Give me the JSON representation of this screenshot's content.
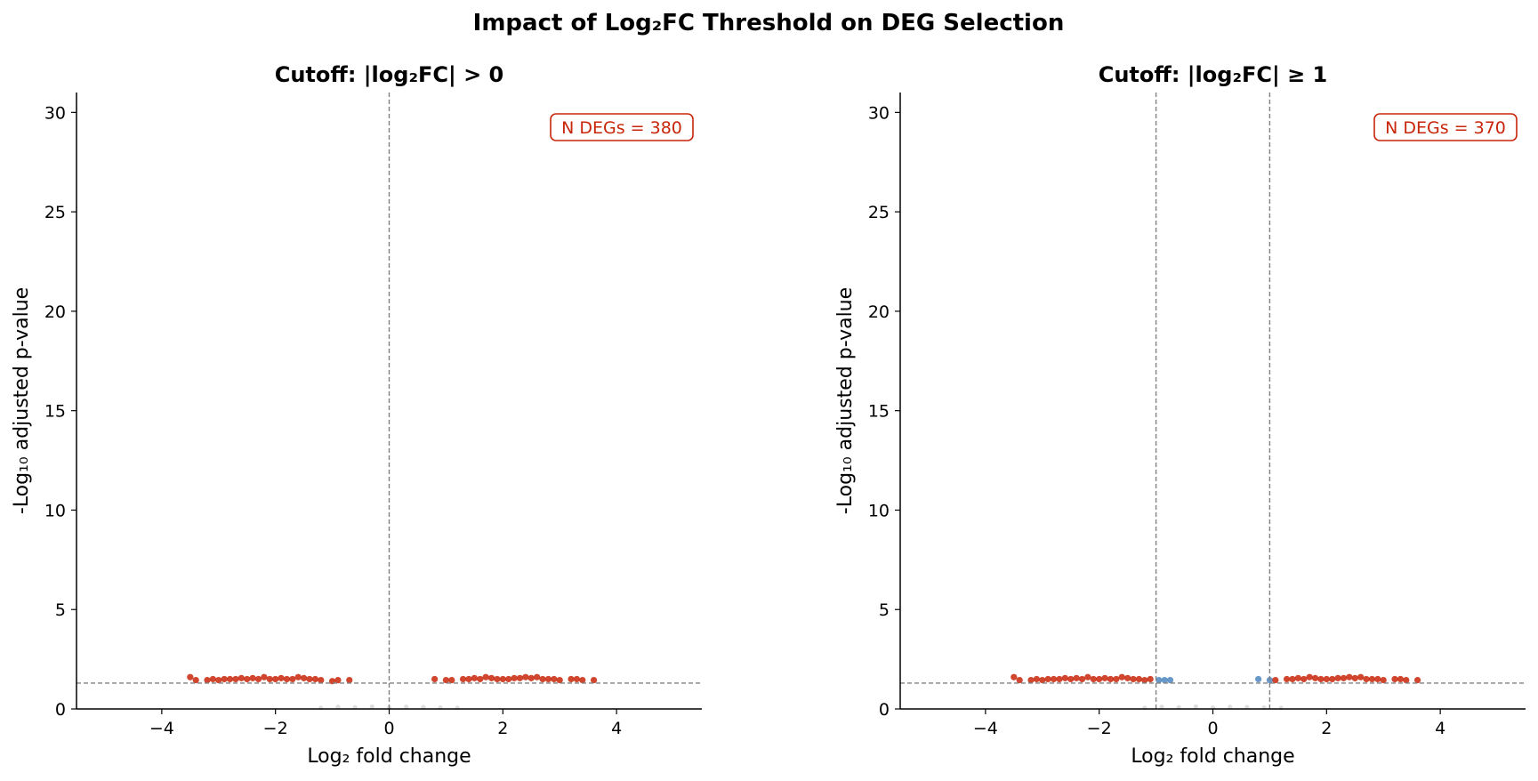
{
  "figure": {
    "title": "Impact of Log₂FC Threshold on DEG Selection"
  },
  "colors": {
    "significant": "#c8260a",
    "fc_fail": "#4f87bf",
    "nonsignificant": "#c8c8c8",
    "threshold_line": "#808080",
    "annotation": "#c8260a"
  },
  "chart_data": [
    {
      "type": "scatter",
      "title": "Cutoff: |log₂FC| > 0",
      "xlabel": "Log₂ fold change",
      "ylabel": "-Log₁₀ adjusted p-value",
      "xlim": [
        -5.5,
        5.5
      ],
      "ylim": [
        0,
        31
      ],
      "xticks": [
        -4,
        -2,
        0,
        2,
        4
      ],
      "xtick_labels": [
        "−4",
        "−2",
        "0",
        "2",
        "4"
      ],
      "yticks": [
        0,
        5,
        10,
        15,
        20,
        25,
        30
      ],
      "ytick_labels": [
        "0",
        "5",
        "10",
        "15",
        "20",
        "25",
        "30"
      ],
      "vlines": [
        0
      ],
      "hline": 1.3,
      "annotation": "N DEGs = 380",
      "grid": false,
      "series": [
        {
          "role": "significant",
          "x": [
            -3.5,
            -3.4,
            -3.2,
            -3.1,
            -3.0,
            -2.9,
            -2.8,
            -2.7,
            -2.6,
            -2.5,
            -2.4,
            -2.3,
            -2.2,
            -2.1,
            -2.0,
            -1.9,
            -1.8,
            -1.7,
            -1.6,
            -1.5,
            -1.4,
            -1.3,
            -1.2,
            -1.0,
            -0.9,
            -0.7,
            0.8,
            1.0,
            1.1,
            1.3,
            1.4,
            1.5,
            1.6,
            1.7,
            1.8,
            1.9,
            2.0,
            2.1,
            2.2,
            2.3,
            2.4,
            2.5,
            2.6,
            2.7,
            2.8,
            2.9,
            3.0,
            3.2,
            3.3,
            3.4,
            3.6
          ],
          "y": [
            1.6,
            1.45,
            1.45,
            1.5,
            1.45,
            1.5,
            1.5,
            1.5,
            1.55,
            1.5,
            1.55,
            1.5,
            1.6,
            1.5,
            1.5,
            1.55,
            1.5,
            1.5,
            1.6,
            1.55,
            1.5,
            1.5,
            1.45,
            1.4,
            1.45,
            1.45,
            1.5,
            1.45,
            1.45,
            1.5,
            1.5,
            1.55,
            1.5,
            1.6,
            1.55,
            1.5,
            1.5,
            1.5,
            1.55,
            1.55,
            1.6,
            1.55,
            1.6,
            1.5,
            1.5,
            1.5,
            1.45,
            1.5,
            1.5,
            1.45,
            1.45
          ]
        },
        {
          "role": "nonsignificant",
          "x": [
            -1.2,
            -0.9,
            -0.6,
            -0.3,
            0.0,
            0.3,
            0.6,
            0.9,
            1.2
          ],
          "y": [
            0.05,
            0.1,
            0.08,
            0.12,
            0.06,
            0.1,
            0.09,
            0.07,
            0.05
          ]
        }
      ]
    },
    {
      "type": "scatter",
      "title": "Cutoff: |log₂FC| ≥ 1",
      "xlabel": "Log₂ fold change",
      "ylabel": "-Log₁₀ adjusted p-value",
      "xlim": [
        -5.5,
        5.5
      ],
      "ylim": [
        0,
        31
      ],
      "xticks": [
        -4,
        -2,
        0,
        2,
        4
      ],
      "xtick_labels": [
        "−4",
        "−2",
        "0",
        "2",
        "4"
      ],
      "yticks": [
        0,
        5,
        10,
        15,
        20,
        25,
        30
      ],
      "ytick_labels": [
        "0",
        "5",
        "10",
        "15",
        "20",
        "25",
        "30"
      ],
      "vlines": [
        -1,
        1
      ],
      "hline": 1.3,
      "annotation": "N DEGs = 370",
      "grid": false,
      "series": [
        {
          "role": "significant",
          "x": [
            -3.5,
            -3.4,
            -3.2,
            -3.1,
            -3.0,
            -2.9,
            -2.8,
            -2.7,
            -2.6,
            -2.5,
            -2.4,
            -2.3,
            -2.2,
            -2.1,
            -2.0,
            -1.9,
            -1.8,
            -1.7,
            -1.6,
            -1.5,
            -1.4,
            -1.3,
            -1.2,
            -1.1,
            1.1,
            1.3,
            1.4,
            1.5,
            1.6,
            1.7,
            1.8,
            1.9,
            2.0,
            2.1,
            2.2,
            2.3,
            2.4,
            2.5,
            2.6,
            2.7,
            2.8,
            2.9,
            3.0,
            3.2,
            3.3,
            3.4,
            3.6
          ],
          "y": [
            1.6,
            1.45,
            1.45,
            1.5,
            1.45,
            1.5,
            1.5,
            1.5,
            1.55,
            1.5,
            1.55,
            1.5,
            1.6,
            1.5,
            1.5,
            1.55,
            1.5,
            1.5,
            1.6,
            1.55,
            1.5,
            1.5,
            1.45,
            1.5,
            1.45,
            1.5,
            1.5,
            1.55,
            1.5,
            1.6,
            1.55,
            1.5,
            1.5,
            1.5,
            1.55,
            1.55,
            1.6,
            1.55,
            1.6,
            1.5,
            1.5,
            1.5,
            1.45,
            1.5,
            1.5,
            1.45,
            1.45
          ]
        },
        {
          "role": "fc_fail",
          "x": [
            -0.95,
            -0.85,
            -0.75,
            0.8,
            1.0
          ],
          "y": [
            1.45,
            1.45,
            1.45,
            1.5,
            1.45
          ]
        },
        {
          "role": "nonsignificant",
          "x": [
            -1.2,
            -0.9,
            -0.6,
            -0.3,
            0.0,
            0.3,
            0.6,
            0.9,
            1.2
          ],
          "y": [
            0.05,
            0.1,
            0.08,
            0.12,
            0.06,
            0.1,
            0.09,
            0.07,
            0.05
          ]
        }
      ]
    }
  ]
}
